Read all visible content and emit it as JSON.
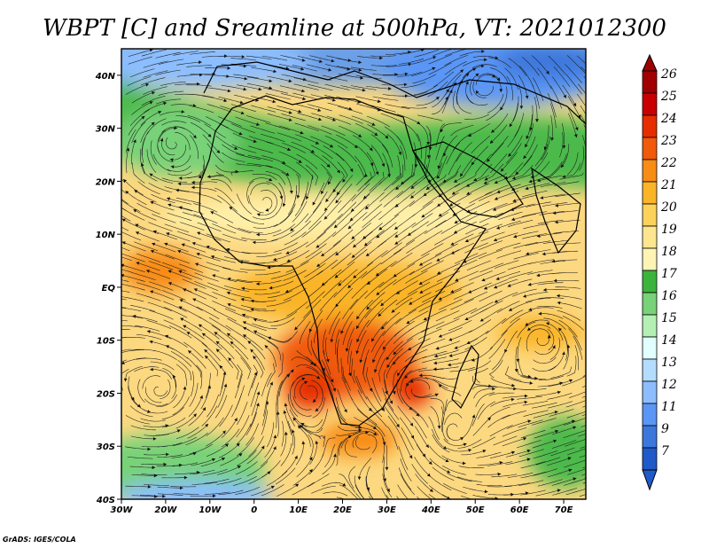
{
  "title": "WBPT [C] and Sreamline at 500hPa, VT: 2021012300",
  "credit": "GrADS: IGES/COLA",
  "map": {
    "lon_range": [
      -30,
      75
    ],
    "lat_range": [
      -40,
      45
    ],
    "lat_ticks": [
      {
        "value": 40,
        "label": "40N"
      },
      {
        "value": 30,
        "label": "30N"
      },
      {
        "value": 20,
        "label": "20N"
      },
      {
        "value": 10,
        "label": "10N"
      },
      {
        "value": 0,
        "label": "EQ"
      },
      {
        "value": -10,
        "label": "10S"
      },
      {
        "value": -20,
        "label": "20S"
      },
      {
        "value": -30,
        "label": "30S"
      },
      {
        "value": -40,
        "label": "40S"
      }
    ],
    "lon_ticks": [
      {
        "value": -30,
        "label": "30W"
      },
      {
        "value": -20,
        "label": "20W"
      },
      {
        "value": -10,
        "label": "10W"
      },
      {
        "value": 0,
        "label": "0"
      },
      {
        "value": 10,
        "label": "10E"
      },
      {
        "value": 20,
        "label": "20E"
      },
      {
        "value": 30,
        "label": "30E"
      },
      {
        "value": 40,
        "label": "40E"
      },
      {
        "value": 50,
        "label": "50E"
      },
      {
        "value": 60,
        "label": "60E"
      },
      {
        "value": 70,
        "label": "70E"
      }
    ]
  },
  "colorbar": {
    "labels": [
      "26",
      "25",
      "24",
      "23",
      "22",
      "21",
      "20",
      "19",
      "18",
      "17",
      "16",
      "15",
      "14",
      "13",
      "12",
      "11",
      "9",
      "7"
    ],
    "colors": [
      "#a00000",
      "#c80000",
      "#e62d00",
      "#f05a0a",
      "#f88c14",
      "#fab428",
      "#fcd25a",
      "#fde68e",
      "#fff4b4",
      "#3cb43c",
      "#78d278",
      "#b4f0b4",
      "#e1ffff",
      "#b4dcff",
      "#8cbeff",
      "#5a96f5",
      "#3c78dc",
      "#1e5ac8"
    ],
    "top_arrow_color": "#a00000",
    "bottom_arrow_color": "#1e5ac8"
  }
}
